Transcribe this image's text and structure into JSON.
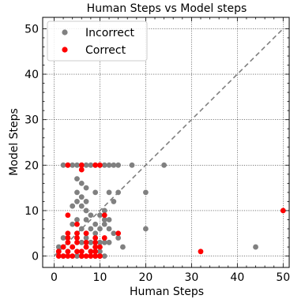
{
  "chart_data": {
    "type": "scatter",
    "title": "Human Steps vs Model steps",
    "xlabel": "Human Steps",
    "ylabel": "Model Steps",
    "xlim": [
      -2.5,
      51.5
    ],
    "ylim": [
      -2.5,
      52.5
    ],
    "xticks": [
      0,
      10,
      20,
      30,
      40,
      50
    ],
    "yticks": [
      0,
      10,
      20,
      30,
      40,
      50
    ],
    "grid": true,
    "legend_position": "top-left",
    "reference_line": {
      "x": [
        0,
        50
      ],
      "y": [
        0,
        50
      ],
      "style": "dashed",
      "color": "#808080"
    },
    "series": [
      {
        "name": "Incorrect",
        "color": "#808080",
        "x": [
          2,
          3,
          4,
          5,
          6,
          7,
          8,
          9,
          10,
          11,
          12,
          13,
          14,
          17,
          24,
          5,
          6,
          7,
          5,
          6,
          5,
          7,
          9,
          12,
          13,
          14,
          20,
          4,
          6,
          7,
          11,
          8,
          10,
          11,
          12,
          5,
          7,
          9,
          11,
          4,
          6,
          8,
          10,
          12,
          5,
          7,
          9,
          13,
          20,
          2,
          3,
          5,
          6,
          8,
          10,
          11,
          12,
          15,
          1,
          2,
          4,
          7,
          9,
          14,
          3,
          6,
          8,
          10,
          44,
          2,
          5,
          9,
          11,
          3,
          7
        ],
        "y": [
          20,
          20,
          20,
          20,
          20,
          20,
          20,
          20,
          20,
          20,
          20,
          20,
          20,
          20,
          20,
          17,
          16,
          15,
          14,
          13,
          12,
          12,
          14,
          14,
          12,
          14,
          14,
          11,
          11,
          10,
          10,
          9,
          9,
          8,
          8,
          8,
          8,
          7,
          7,
          7,
          6,
          6,
          6,
          6,
          5,
          5,
          5,
          5,
          6,
          4,
          4,
          4,
          3,
          3,
          3,
          3,
          3,
          2,
          2,
          2,
          2,
          2,
          2,
          4,
          1,
          1,
          1,
          1,
          2,
          0,
          0,
          0,
          0,
          3,
          4
        ]
      },
      {
        "name": "Correct",
        "color": "#ff0000",
        "x": [
          3,
          6,
          9,
          10,
          6,
          3,
          11,
          5,
          14,
          3,
          5,
          7,
          9,
          11,
          3,
          5,
          7,
          9,
          3,
          5,
          7,
          9,
          10,
          2,
          4,
          6,
          8,
          1,
          3,
          5,
          7,
          9,
          1,
          2,
          4,
          6,
          8,
          10,
          1,
          3,
          6,
          9,
          10,
          50,
          32
        ],
        "y": [
          20,
          20,
          20,
          20,
          19,
          9,
          9,
          7,
          5,
          5,
          5,
          5,
          4,
          4,
          4,
          4,
          3,
          3,
          3,
          3,
          2,
          2,
          2,
          2,
          2,
          1,
          1,
          1,
          1,
          1,
          0,
          0,
          0,
          0,
          0,
          0,
          0,
          0,
          1,
          0,
          0,
          1,
          0,
          10,
          1
        ]
      }
    ]
  }
}
